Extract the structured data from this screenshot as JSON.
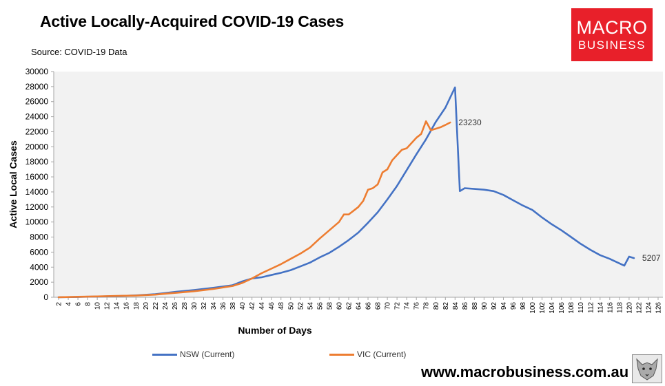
{
  "header": {
    "title": "Active Locally-Acquired COVID-19 Cases",
    "source": "Source: COVID-19 Data"
  },
  "logo": {
    "line1": "MACRO",
    "line2": "BUSINESS",
    "color": "#e8202a"
  },
  "footer": {
    "url": "www.macrobusiness.com.au"
  },
  "chart_data": {
    "type": "line",
    "title": "Active Locally-Acquired COVID-19 Cases",
    "xlabel": "Number of Days",
    "ylabel": "Active Local Cases",
    "xlim": [
      2,
      126
    ],
    "ylim": [
      0,
      30000
    ],
    "yticks": [
      0,
      2000,
      4000,
      6000,
      8000,
      10000,
      12000,
      14000,
      16000,
      18000,
      20000,
      22000,
      24000,
      26000,
      28000,
      30000
    ],
    "xticks": [
      2,
      4,
      6,
      8,
      10,
      12,
      14,
      16,
      18,
      20,
      22,
      24,
      26,
      28,
      30,
      32,
      34,
      36,
      38,
      40,
      42,
      44,
      46,
      48,
      50,
      52,
      54,
      56,
      58,
      60,
      62,
      64,
      66,
      68,
      70,
      72,
      74,
      76,
      78,
      80,
      82,
      84,
      86,
      88,
      90,
      92,
      94,
      96,
      98,
      100,
      102,
      104,
      106,
      108,
      110,
      112,
      114,
      116,
      118,
      120,
      122,
      124,
      126
    ],
    "grid": false,
    "legend_position": "bottom",
    "series": [
      {
        "name": "NSW (Current)",
        "color": "#4472c4",
        "end_label": "5207",
        "points": [
          [
            2,
            0
          ],
          [
            6,
            40
          ],
          [
            10,
            100
          ],
          [
            14,
            150
          ],
          [
            18,
            250
          ],
          [
            22,
            400
          ],
          [
            26,
            700
          ],
          [
            30,
            950
          ],
          [
            34,
            1250
          ],
          [
            38,
            1600
          ],
          [
            40,
            2100
          ],
          [
            42,
            2500
          ],
          [
            44,
            2650
          ],
          [
            46,
            2950
          ],
          [
            48,
            3250
          ],
          [
            50,
            3600
          ],
          [
            52,
            4100
          ],
          [
            54,
            4600
          ],
          [
            56,
            5300
          ],
          [
            58,
            5900
          ],
          [
            60,
            6700
          ],
          [
            62,
            7600
          ],
          [
            64,
            8600
          ],
          [
            66,
            9900
          ],
          [
            68,
            11300
          ],
          [
            70,
            13000
          ],
          [
            72,
            14800
          ],
          [
            74,
            16900
          ],
          [
            76,
            19000
          ],
          [
            78,
            21000
          ],
          [
            80,
            23300
          ],
          [
            82,
            25200
          ],
          [
            84,
            27900
          ],
          [
            85,
            14100
          ],
          [
            86,
            14500
          ],
          [
            88,
            14400
          ],
          [
            90,
            14300
          ],
          [
            92,
            14100
          ],
          [
            94,
            13600
          ],
          [
            96,
            12900
          ],
          [
            98,
            12200
          ],
          [
            100,
            11600
          ],
          [
            102,
            10600
          ],
          [
            104,
            9700
          ],
          [
            106,
            8900
          ],
          [
            108,
            8000
          ],
          [
            110,
            7100
          ],
          [
            112,
            6300
          ],
          [
            114,
            5600
          ],
          [
            116,
            5100
          ],
          [
            118,
            4500
          ],
          [
            119,
            4200
          ],
          [
            120,
            5400
          ],
          [
            121,
            5207
          ]
        ]
      },
      {
        "name": "VIC (Current)",
        "color": "#ed7d31",
        "end_label": "23230",
        "points": [
          [
            2,
            0
          ],
          [
            6,
            60
          ],
          [
            10,
            110
          ],
          [
            14,
            170
          ],
          [
            18,
            220
          ],
          [
            22,
            350
          ],
          [
            26,
            580
          ],
          [
            30,
            800
          ],
          [
            34,
            1100
          ],
          [
            38,
            1500
          ],
          [
            40,
            1900
          ],
          [
            42,
            2500
          ],
          [
            44,
            3200
          ],
          [
            46,
            3800
          ],
          [
            48,
            4400
          ],
          [
            50,
            5100
          ],
          [
            52,
            5800
          ],
          [
            54,
            6600
          ],
          [
            56,
            7800
          ],
          [
            58,
            8900
          ],
          [
            60,
            10000
          ],
          [
            61,
            11000
          ],
          [
            62,
            11000
          ],
          [
            63,
            11500
          ],
          [
            64,
            12000
          ],
          [
            65,
            12800
          ],
          [
            66,
            14300
          ],
          [
            67,
            14500
          ],
          [
            68,
            15000
          ],
          [
            69,
            16600
          ],
          [
            70,
            17000
          ],
          [
            71,
            18200
          ],
          [
            72,
            18900
          ],
          [
            73,
            19600
          ],
          [
            74,
            19800
          ],
          [
            75,
            20500
          ],
          [
            76,
            21200
          ],
          [
            77,
            21700
          ],
          [
            78,
            23400
          ],
          [
            79,
            22200
          ],
          [
            80,
            22400
          ],
          [
            81,
            22600
          ],
          [
            82,
            22900
          ],
          [
            83,
            23230
          ]
        ]
      }
    ]
  }
}
